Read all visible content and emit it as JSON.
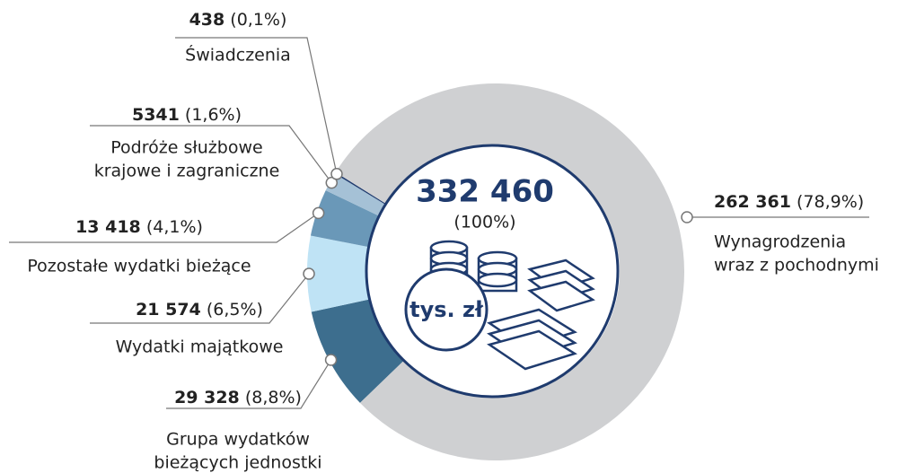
{
  "chart_data": {
    "type": "donut",
    "categories": [
      [
        "Grupa wydatków",
        "bieżących jednostki"
      ],
      [
        "Wydatki majątkowe"
      ],
      [
        "Pozostałe wydatki bieżące"
      ],
      [
        "Podróże służbowe",
        "krajowe i zagraniczne"
      ],
      [
        "Świadczenia"
      ],
      [
        "Wynagrodzenia",
        "wraz z pochodnymi"
      ]
    ],
    "values": [
      29328,
      21574,
      13418,
      5341,
      438,
      262361
    ],
    "value_labels": [
      "29 328",
      "21 574",
      "13 418",
      "5341",
      "438",
      "262 361"
    ],
    "percent_labels": [
      "(8,8%)",
      "(6,5%)",
      "(4,1%)",
      "(1,6%)",
      "(0,1%)",
      "(78,9%)"
    ],
    "colors": [
      "#3d6e8e",
      "#bfe3f5",
      "#6a98b8",
      "#a5c1d6",
      "#1f3b6e",
      "#cfd0d2"
    ],
    "center": {
      "value_label": "332 460",
      "percent_label": "(100%)",
      "unit": "tys. zł"
    }
  }
}
